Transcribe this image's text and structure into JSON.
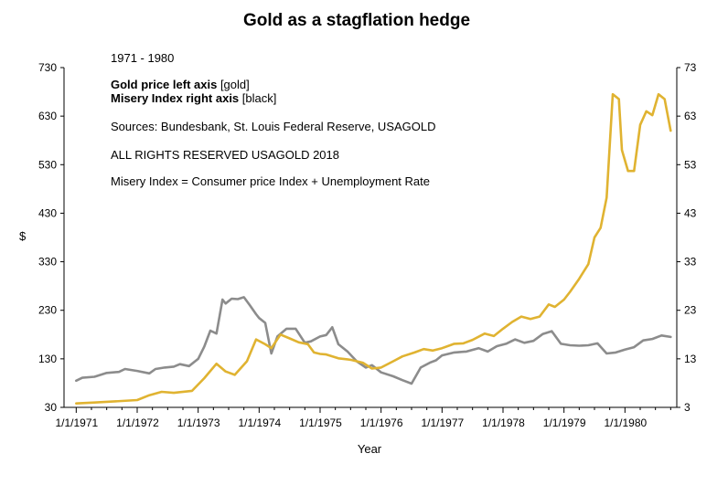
{
  "chart_data": {
    "type": "line",
    "title": "Gold as a stagflation hedge",
    "xlabel": "Year",
    "ylabel_left": "$",
    "ylabel_right": "",
    "notes": {
      "period": "1971 - 1980",
      "gold_legend_bold": "Gold price left axis",
      "gold_legend_rest": " [gold]",
      "misery_legend_bold": "Misery Index right axis",
      "misery_legend_rest": " [black]",
      "sources": "Sources: Bundesbank, St. Louis Federal Reserve, USAGOLD",
      "rights": "ALL RIGHTS RESERVED USAGOLD 2018",
      "definition": "Misery Index = Consumer price Index + Unemployment Rate"
    },
    "left_axis": {
      "min": 30,
      "max": 730,
      "ticks": [
        30,
        130,
        230,
        330,
        430,
        530,
        630,
        730
      ]
    },
    "right_axis": {
      "min": 3,
      "max": 73,
      "ticks": [
        3,
        13,
        23,
        33,
        43,
        53,
        63,
        73
      ]
    },
    "x_axis": {
      "min": 1970.8,
      "max": 1980.85,
      "ticks": [
        1971,
        1972,
        1973,
        1974,
        1975,
        1976,
        1977,
        1978,
        1979,
        1980
      ],
      "tick_labels": [
        "1/1/1971",
        "1/1/1972",
        "1/1/1973",
        "1/1/1974",
        "1/1/1975",
        "1/1/1976",
        "1/1/1977",
        "1/1/1978",
        "1/1/1979",
        "1/1/1980"
      ]
    },
    "grid": false,
    "colors": {
      "gold": "#e0b331",
      "misery": "#8c8c8c"
    },
    "series": [
      {
        "name": "Gold price left axis",
        "axis": "left",
        "x": [
          1971.0,
          1971.3,
          1971.6,
          1972.0,
          1972.2,
          1972.4,
          1972.6,
          1972.9,
          1973.1,
          1973.3,
          1973.45,
          1973.6,
          1973.8,
          1973.95,
          1974.1,
          1974.2,
          1974.35,
          1974.5,
          1974.65,
          1974.8,
          1974.9,
          1975.0,
          1975.1,
          1975.3,
          1975.5,
          1975.7,
          1975.85,
          1976.0,
          1976.2,
          1976.35,
          1976.55,
          1976.7,
          1976.85,
          1977.0,
          1977.2,
          1977.35,
          1977.5,
          1977.7,
          1977.85,
          1978.0,
          1978.15,
          1978.3,
          1978.45,
          1978.6,
          1978.75,
          1978.85,
          1979.0,
          1979.1,
          1979.25,
          1979.4,
          1979.5,
          1979.6,
          1979.7,
          1979.8,
          1979.9,
          1979.95,
          1980.05,
          1980.15,
          1980.25,
          1980.35,
          1980.45,
          1980.55,
          1980.65,
          1980.75
        ],
        "values": [
          38,
          40,
          42,
          45,
          55,
          62,
          60,
          64,
          90,
          120,
          104,
          97,
          125,
          170,
          160,
          152,
          180,
          172,
          164,
          160,
          143,
          140,
          139,
          131,
          128,
          122,
          110,
          112,
          125,
          135,
          143,
          150,
          147,
          152,
          161,
          162,
          169,
          182,
          177,
          192,
          206,
          217,
          212,
          217,
          242,
          237,
          252,
          268,
          295,
          325,
          380,
          400,
          462,
          675,
          665,
          560,
          517,
          517,
          612,
          640,
          632,
          675,
          665,
          600
        ]
      },
      {
        "name": "Misery Index right axis",
        "axis": "right",
        "x": [
          1971.0,
          1971.1,
          1971.3,
          1971.5,
          1971.7,
          1971.8,
          1972.0,
          1972.2,
          1972.3,
          1972.45,
          1972.6,
          1972.7,
          1972.85,
          1973.0,
          1973.1,
          1973.2,
          1973.3,
          1973.4,
          1973.45,
          1973.55,
          1973.65,
          1973.75,
          1973.85,
          1973.95,
          1974.0,
          1974.1,
          1974.2,
          1974.3,
          1974.45,
          1974.6,
          1974.75,
          1974.85,
          1975.0,
          1975.1,
          1975.2,
          1975.3,
          1975.45,
          1975.6,
          1975.75,
          1975.85,
          1976.0,
          1976.2,
          1976.35,
          1976.5,
          1976.65,
          1976.8,
          1976.9,
          1977.0,
          1977.2,
          1977.4,
          1977.6,
          1977.75,
          1977.9,
          1978.05,
          1978.2,
          1978.35,
          1978.5,
          1978.65,
          1978.8,
          1978.95,
          1979.1,
          1979.25,
          1979.4,
          1979.55,
          1979.7,
          1979.85,
          1980.0,
          1980.15,
          1980.3,
          1980.45,
          1980.6,
          1980.75
        ],
        "values": [
          8.5,
          9.1,
          9.3,
          10.1,
          10.3,
          10.9,
          10.5,
          10.0,
          10.9,
          11.2,
          11.4,
          11.9,
          11.5,
          13.0,
          15.5,
          18.8,
          18.2,
          25.2,
          24.4,
          25.4,
          25.3,
          25.7,
          24.0,
          22.2,
          21.4,
          20.4,
          14.1,
          17.6,
          19.2,
          19.2,
          16.3,
          16.6,
          17.6,
          17.9,
          19.5,
          16.0,
          14.5,
          12.5,
          11.2,
          11.7,
          10.2,
          9.4,
          8.6,
          7.9,
          11.2,
          12.2,
          12.7,
          13.7,
          14.3,
          14.5,
          15.2,
          14.5,
          15.6,
          16.1,
          17.0,
          16.3,
          16.7,
          18.1,
          18.7,
          16.1,
          15.8,
          15.7,
          15.8,
          16.2,
          14.1,
          14.3,
          14.9,
          15.4,
          16.8,
          17.1,
          17.8,
          17.5
        ]
      }
    ]
  }
}
